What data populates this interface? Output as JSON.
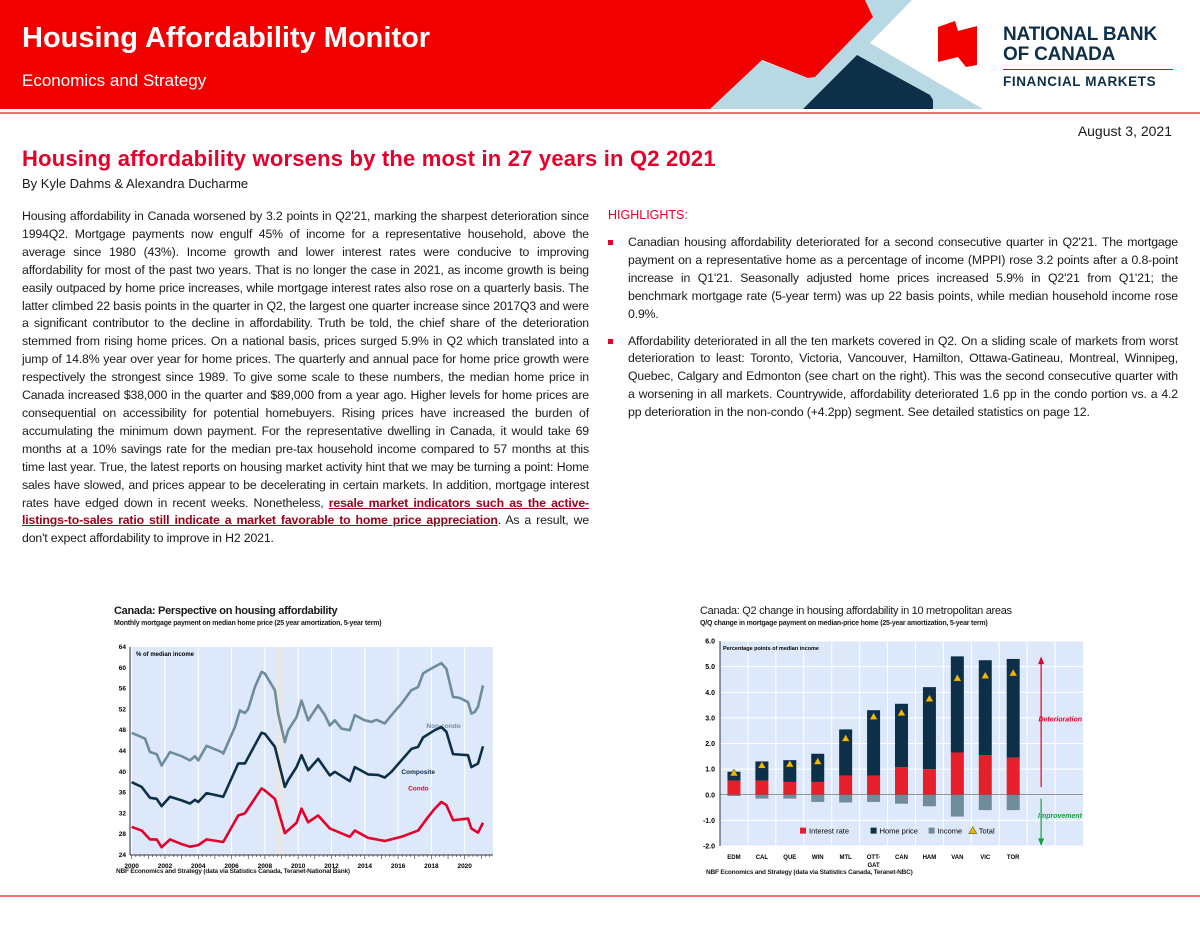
{
  "header": {
    "title": "Housing Affordability Monitor",
    "subtitle": "Economics and Strategy",
    "logo": {
      "line1": "NATIONAL BANK",
      "line2": "OF CANADA",
      "line3": "FINANCIAL MARKETS"
    },
    "colors": {
      "red": "#e4002b",
      "navy": "#0e2f48",
      "light_blue": "#b8d8e4"
    }
  },
  "date": "August 3, 2021",
  "headline": "Housing affordability worsens by the most in 27 years in Q2 2021",
  "byline": "By Kyle Dahms & Alexandra Ducharme",
  "body": {
    "text_before": "Housing affordability in Canada worsened by 3.2 points in Q2'21, marking the sharpest deterioration since 1994Q2. Mortgage payments now engulf 45% of income for a representative household, above the average since 1980 (43%).  Income growth and lower interest rates were conducive to improving affordability for most of the past two years. That is no longer the case in 2021, as income growth is being easily outpaced by home price increases, while mortgage interest rates also rose on a quarterly basis. The latter climbed 22 basis points in the quarter in Q2, the largest one quarter increase since 2017Q3 and were a significant contributor to the decline in affordability. Truth be told, the chief share of the deterioration stemmed from rising home prices. On a national basis, prices surged 5.9% in Q2 which translated into a jump of 14.8% year over year for home prices. The quarterly and annual pace for home price growth were respectively the strongest since 1989. To give some scale to these numbers, the median home price in Canada increased $38,000 in the quarter and $89,000 from a year ago. Higher levels for home prices are consequential on accessibility for potential homebuyers. Rising prices have increased the burden of accumulating the minimum down payment. For the representative dwelling in Canada, it would take 69 months at a 10% savings rate for the median pre-tax household income compared to 57 months at this time last year. True, the latest reports on housing market activity hint that we may be turning a point: Home sales have slowed, and prices appear to be decelerating in certain markets. In addition, mortgage interest rates have edged down in recent weeks. Nonetheless, ",
    "link": "resale market indicators such as the active-listings-to-sales ratio still indicate a market favorable to home price appreciation",
    "text_after": ". As a result, we don't expect affordability to improve in H2 2021."
  },
  "highlights": {
    "title": "HIGHLIGHTS:",
    "items": [
      "Canadian housing affordability deteriorated for a second consecutive quarter in Q2'21. The mortgage payment on a representative home as a percentage of income (MPPI) rose 3.2 points after a 0.8-point increase in Q1'21. Seasonally adjusted home prices increased 5.9% in Q2'21 from Q1'21; the benchmark mortgage rate (5-year term) was up 22 basis points, while median household income rose 0.9%.",
      "Affordability deteriorated in all the ten markets covered in Q2. On a sliding scale of markets from worst deterioration to least:  Toronto, Victoria, Vancouver, Hamilton, Ottawa-Gatineau, Montreal, Winnipeg, Quebec, Calgary and Edmonton (see chart on the right). This was the second consecutive quarter with a worsening in all markets. Countrywide, affordability deteriorated 1.6 pp in the condo portion vs. a 4.2 pp deterioration in the non-condo (+4.2pp) segment. See detailed statistics on page 12."
    ]
  },
  "chart_data": [
    {
      "type": "line",
      "title": "Canada: Perspective on housing affordability",
      "subtitle": "Monthly mortgage payment on median home price (25 year amortization, 5-year term)",
      "ylabel": "% of median income",
      "ylim": [
        24,
        64
      ],
      "yticks": [
        "24",
        "28",
        "32",
        "36",
        "40",
        "44",
        "48",
        "52",
        "56",
        "60",
        "64"
      ],
      "xlim": [
        1999.9,
        2021.7
      ],
      "xticks": [
        "2000",
        "2002",
        "2004",
        "2006",
        "2008",
        "2010",
        "2012",
        "2014",
        "2016",
        "2018",
        "2020"
      ],
      "recession_shading": [
        2008.6,
        2009.15
      ],
      "grid": true,
      "source": "NBF Economics and Strategy (data via Statistics Canada, Teranet-National Bank)",
      "series": [
        {
          "name": "Non-condo",
          "color": "#6f8c9c",
          "points": [
            [
              2000,
              47.5
            ],
            [
              2000.8,
              46.4
            ],
            [
              2001.1,
              43.8
            ],
            [
              2001.5,
              43.4
            ],
            [
              2001.8,
              41.2
            ],
            [
              2002.3,
              43.8
            ],
            [
              2003,
              43
            ],
            [
              2003.5,
              42.2
            ],
            [
              2003.8,
              43
            ],
            [
              2004,
              42.2
            ],
            [
              2004.5,
              45
            ],
            [
              2005.4,
              43.8
            ],
            [
              2005.5,
              43.5
            ],
            [
              2006.2,
              48.6
            ],
            [
              2006.5,
              51.8
            ],
            [
              2006.8,
              51.3
            ],
            [
              2007,
              52.1
            ],
            [
              2007.4,
              56.3
            ],
            [
              2007.8,
              59.2
            ],
            [
              2008,
              58.9
            ],
            [
              2008.6,
              55.7
            ],
            [
              2008.8,
              51.2
            ],
            [
              2009.2,
              45.7
            ],
            [
              2009.4,
              48
            ],
            [
              2009.9,
              50.5
            ],
            [
              2010.2,
              53.7
            ],
            [
              2010.6,
              49.9
            ],
            [
              2011.2,
              52.8
            ],
            [
              2011.6,
              50.9
            ],
            [
              2011.9,
              48.9
            ],
            [
              2012.2,
              49.9
            ],
            [
              2012.6,
              48.3
            ],
            [
              2013.1,
              48
            ],
            [
              2013.4,
              50.9
            ],
            [
              2014,
              49.9
            ],
            [
              2014.4,
              49.6
            ],
            [
              2014.7,
              50
            ],
            [
              2015.2,
              49.3
            ],
            [
              2015.6,
              50.9
            ],
            [
              2016.2,
              53.1
            ],
            [
              2016.8,
              55.7
            ],
            [
              2017.2,
              56.3
            ],
            [
              2017.5,
              58.9
            ],
            [
              2017.8,
              59.5
            ],
            [
              2018.2,
              60.2
            ],
            [
              2018.6,
              60.9
            ],
            [
              2018.9,
              59.8
            ],
            [
              2019.3,
              54.4
            ],
            [
              2019.7,
              54.2
            ],
            [
              2020.2,
              53.4
            ],
            [
              2020.4,
              51.2
            ],
            [
              2020.6,
              51.5
            ],
            [
              2020.8,
              52.5
            ],
            [
              2021.1,
              56.6
            ]
          ]
        },
        {
          "name": "Composite",
          "color": "#0e2f48",
          "points": [
            [
              2000,
              38
            ],
            [
              2000.6,
              37.1
            ],
            [
              2001.1,
              35
            ],
            [
              2001.5,
              34.8
            ],
            [
              2001.8,
              33.4
            ],
            [
              2002.3,
              35.2
            ],
            [
              2003,
              34.5
            ],
            [
              2003.5,
              33.9
            ],
            [
              2003.8,
              34.6
            ],
            [
              2004,
              34.2
            ],
            [
              2004.5,
              35.9
            ],
            [
              2005.5,
              35.2
            ],
            [
              2006.4,
              41.6
            ],
            [
              2006.8,
              41.6
            ],
            [
              2007.8,
              47.5
            ],
            [
              2008,
              47.3
            ],
            [
              2008.6,
              44.8
            ],
            [
              2009.2,
              37.1
            ],
            [
              2009.4,
              38.4
            ],
            [
              2009.9,
              40.9
            ],
            [
              2010.2,
              43.2
            ],
            [
              2010.6,
              40.3
            ],
            [
              2011.2,
              42.5
            ],
            [
              2011.9,
              39.3
            ],
            [
              2012.2,
              40
            ],
            [
              2013.1,
              38.2
            ],
            [
              2013.4,
              40.9
            ],
            [
              2014.2,
              39.5
            ],
            [
              2014.8,
              39.4
            ],
            [
              2015.2,
              38.9
            ],
            [
              2015.6,
              40
            ],
            [
              2016.8,
              44.4
            ],
            [
              2017.2,
              44.8
            ],
            [
              2017.5,
              46.6
            ],
            [
              2018.2,
              48
            ],
            [
              2018.6,
              48.6
            ],
            [
              2018.9,
              47.7
            ],
            [
              2019.3,
              43.4
            ],
            [
              2020.2,
              43.2
            ],
            [
              2020.4,
              40.9
            ],
            [
              2020.8,
              41.6
            ],
            [
              2021.1,
              44.9
            ]
          ]
        },
        {
          "name": "Condo",
          "color": "#e4002b",
          "points": [
            [
              2000,
              29.4
            ],
            [
              2000.6,
              28.7
            ],
            [
              2001.1,
              27
            ],
            [
              2001.5,
              27
            ],
            [
              2001.8,
              25.5
            ],
            [
              2002.3,
              27
            ],
            [
              2003,
              26.1
            ],
            [
              2003.5,
              25.6
            ],
            [
              2004,
              25.9
            ],
            [
              2004.5,
              27
            ],
            [
              2005.5,
              26.5
            ],
            [
              2006.4,
              31.6
            ],
            [
              2006.8,
              32
            ],
            [
              2007.8,
              36.8
            ],
            [
              2008,
              36.4
            ],
            [
              2008.6,
              34.8
            ],
            [
              2009.2,
              28.2
            ],
            [
              2009.9,
              30.2
            ],
            [
              2010.2,
              32.9
            ],
            [
              2010.6,
              30.3
            ],
            [
              2011.2,
              31.6
            ],
            [
              2011.9,
              29.1
            ],
            [
              2013.1,
              27.5
            ],
            [
              2013.4,
              28.7
            ],
            [
              2014.2,
              27.3
            ],
            [
              2015.2,
              26.7
            ],
            [
              2016.2,
              27.5
            ],
            [
              2017.2,
              28.7
            ],
            [
              2017.8,
              31.3
            ],
            [
              2018.2,
              32.9
            ],
            [
              2018.6,
              34.2
            ],
            [
              2018.9,
              33.6
            ],
            [
              2019.3,
              30.7
            ],
            [
              2020.2,
              31
            ],
            [
              2020.4,
              29.1
            ],
            [
              2020.8,
              28.3
            ],
            [
              2021.1,
              30.2
            ]
          ]
        }
      ]
    },
    {
      "type": "bar",
      "stacked": true,
      "title": "Canada: Q2 change in housing affordability in 10 metropolitan areas",
      "subtitle": "Q/Q change in mortgage payment on median-price home (25-year amortization, 5-year term)",
      "ylabel": "Percentage points of median income",
      "ylim": [
        -2,
        6
      ],
      "yticks": [
        "-2.0",
        "-1.0",
        "0.0",
        "1.0",
        "2.0",
        "3.0",
        "4.0",
        "5.0",
        "6.0"
      ],
      "categories": [
        "EDM",
        "CAL",
        "QUE",
        "WIN",
        "MTL",
        "OTT-GAT",
        "CAN",
        "HAM",
        "VAN",
        "VIC",
        "TOR"
      ],
      "series": [
        {
          "name": "Interest rate",
          "color": "#e4202b",
          "values": [
            0.55,
            0.55,
            0.5,
            0.5,
            0.75,
            0.75,
            1.08,
            1.0,
            1.65,
            1.55,
            1.45
          ]
        },
        {
          "name": "Home price",
          "color": "#0e2f48",
          "values": [
            0.35,
            0.75,
            0.85,
            1.1,
            1.8,
            2.55,
            2.47,
            3.2,
            3.75,
            3.7,
            3.85
          ]
        },
        {
          "name": "Income",
          "color": "#6f8c9c",
          "values": [
            -0.05,
            -0.15,
            -0.15,
            -0.28,
            -0.3,
            -0.28,
            -0.35,
            -0.45,
            -0.85,
            -0.6,
            -0.6
          ]
        },
        {
          "name": "Total",
          "color": "#f0b800",
          "marker": "triangle",
          "values": [
            0.85,
            1.15,
            1.2,
            1.3,
            2.2,
            3.05,
            3.2,
            3.75,
            4.55,
            4.65,
            4.75
          ]
        }
      ],
      "annotations": {
        "up": "Deterioration",
        "down": "Improvement"
      },
      "legend": "bottom-inside",
      "grid": true,
      "source": "NBF Economics and Strategy (data via Statistics Canada, Teranet-NBC)"
    }
  ]
}
